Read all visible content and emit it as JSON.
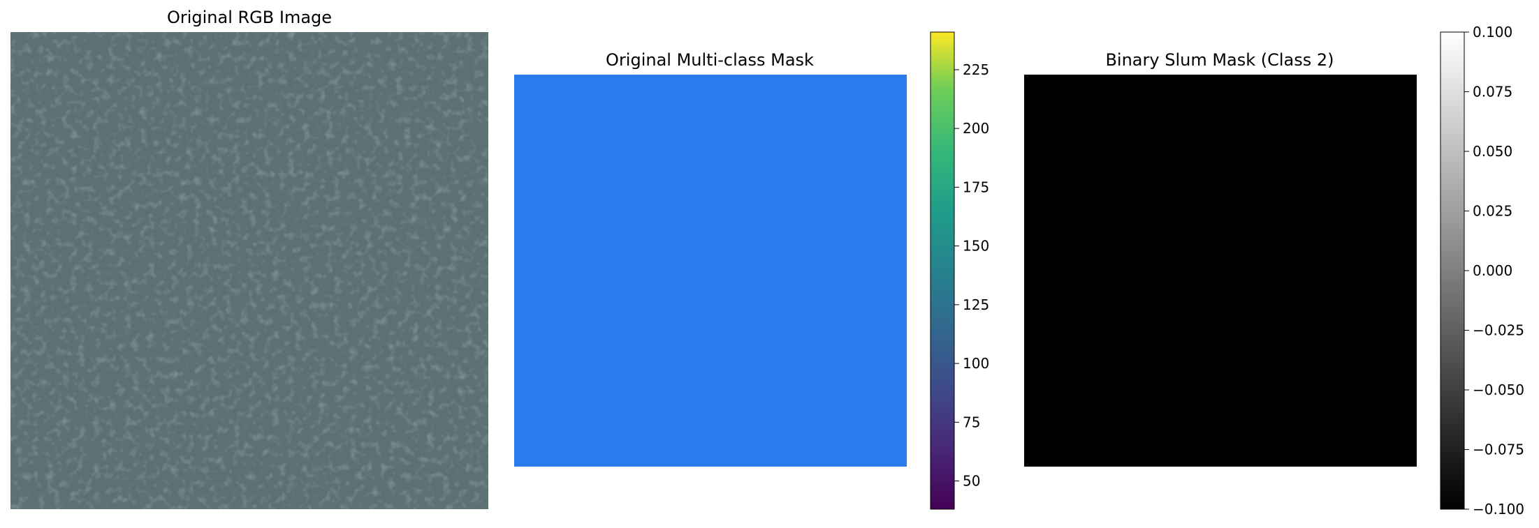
{
  "chart_data": [
    {
      "type": "image",
      "title": "Original RGB Image",
      "colors": {
        "base": "#5d7074",
        "light": "#7d9296",
        "dark": "#4d6064"
      }
    },
    {
      "type": "heatmap",
      "title": "Original Multi-class Mask",
      "mask_color": "#2b7aee",
      "colorbar": {
        "colormap": "viridis",
        "range": [
          38,
          241
        ],
        "ticks": [
          50,
          75,
          100,
          125,
          150,
          175,
          200,
          225
        ],
        "tick_labels": [
          "50",
          "75",
          "100",
          "125",
          "150",
          "175",
          "200",
          "225"
        ]
      }
    },
    {
      "type": "heatmap",
      "title": "Binary Slum Mask (Class 2)",
      "mask_color": "#000000",
      "colorbar": {
        "colormap": "gray",
        "range": [
          -0.1,
          0.1
        ],
        "ticks": [
          -0.1,
          -0.075,
          -0.05,
          -0.025,
          0.0,
          0.025,
          0.05,
          0.075,
          0.1
        ],
        "tick_labels": [
          "−0.100",
          "−0.075",
          "−0.050",
          "−0.025",
          "0.000",
          "0.025",
          "0.050",
          "0.075",
          "0.100"
        ]
      }
    }
  ]
}
